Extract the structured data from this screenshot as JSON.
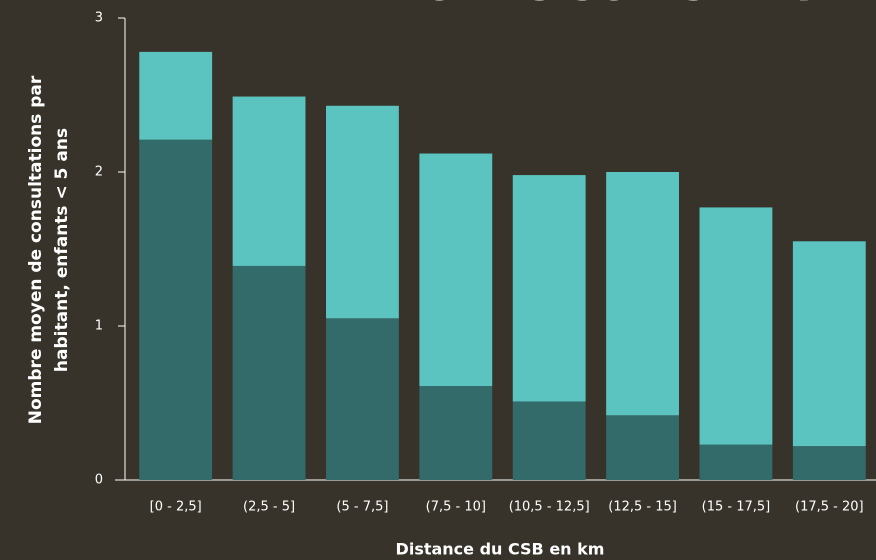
{
  "chart_data": {
    "type": "stacked_bar",
    "title": "AVEC DES SOINS DE PR",
    "ylabel": [
      "Nombre moyen de consultations par",
      "habitant, enfants < 5 ans"
    ],
    "xlabel": "Distance du CSB en km",
    "categories": [
      "[0 - 2,5]",
      "(2,5 - 5]",
      "(5 - 7,5]",
      "(7,5 - 10]",
      "(10,5 - 12,5]",
      "(12,5 - 15]",
      "(15 - 17,5]",
      "(17,5 - 20]"
    ],
    "series": [
      {
        "color": "#336b6b",
        "values": [
          2.21,
          1.39,
          1.05,
          0.61,
          0.51,
          0.42,
          0.23,
          0.22
        ]
      },
      {
        "color": "#5bc4c0",
        "values": [
          0.57,
          1.1,
          1.38,
          1.51,
          1.47,
          1.58,
          1.54,
          1.33
        ]
      }
    ],
    "ylim": [
      0,
      3
    ],
    "yticks": [
      0,
      1,
      2,
      3
    ]
  }
}
